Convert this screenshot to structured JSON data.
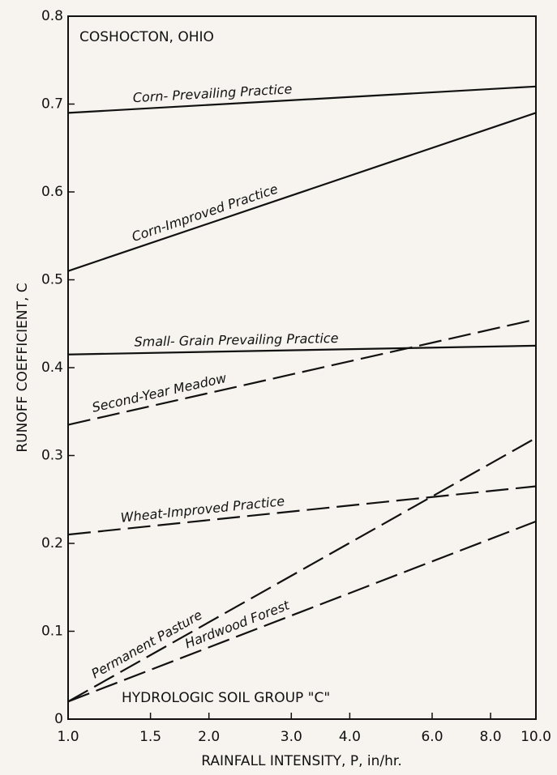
{
  "chart_data": {
    "type": "line",
    "annotations": [
      "COSHOCTON, OHIO",
      "HYDROLOGIC SOIL GROUP \"C\""
    ],
    "xlabel": "RAINFALL INTENSITY, P, in/hr.",
    "ylabel": "RUNOFF COEFFICIENT, C",
    "x": [
      1,
      10
    ],
    "xscale": "log",
    "xlim": [
      1,
      10
    ],
    "xticks": [
      {
        "value": 1,
        "label": "1.0"
      },
      {
        "value": 1.5,
        "label": "1.5"
      },
      {
        "value": 2,
        "label": "2.0"
      },
      {
        "value": 3,
        "label": "3.0"
      },
      {
        "value": 4,
        "label": "4.0"
      },
      {
        "value": 6,
        "label": "6.0"
      },
      {
        "value": 8,
        "label": "8.0"
      },
      {
        "value": 10,
        "label": "10.0"
      }
    ],
    "ylim": [
      0,
      0.8
    ],
    "yticks": [
      0,
      0.1,
      0.2,
      0.3,
      0.4,
      0.5,
      0.6,
      0.7,
      0.8
    ],
    "series": [
      {
        "name": "Corn- Prevailing Practice",
        "color": "#111111",
        "dashed": false,
        "values": [
          0.69,
          0.72
        ]
      },
      {
        "name": "Corn-Improved Practice",
        "color": "#111111",
        "dashed": false,
        "values": [
          0.51,
          0.69
        ]
      },
      {
        "name": "Small- Grain Prevailing Practice",
        "color": "#111111",
        "dashed": false,
        "values": [
          0.415,
          0.425
        ]
      },
      {
        "name": "Second-Year Meadow",
        "color": "#111111",
        "dashed": true,
        "values": [
          0.335,
          0.455
        ]
      },
      {
        "name": "Wheat-Improved Practice",
        "color": "#111111",
        "dashed": true,
        "values": [
          0.21,
          0.265
        ]
      },
      {
        "name": "Permanent Pasture",
        "color": "#111111",
        "dashed": true,
        "values": [
          0.02,
          0.32
        ]
      },
      {
        "name": "Hardwood Forest",
        "color": "#111111",
        "dashed": true,
        "values": [
          0.02,
          0.225
        ]
      }
    ]
  }
}
